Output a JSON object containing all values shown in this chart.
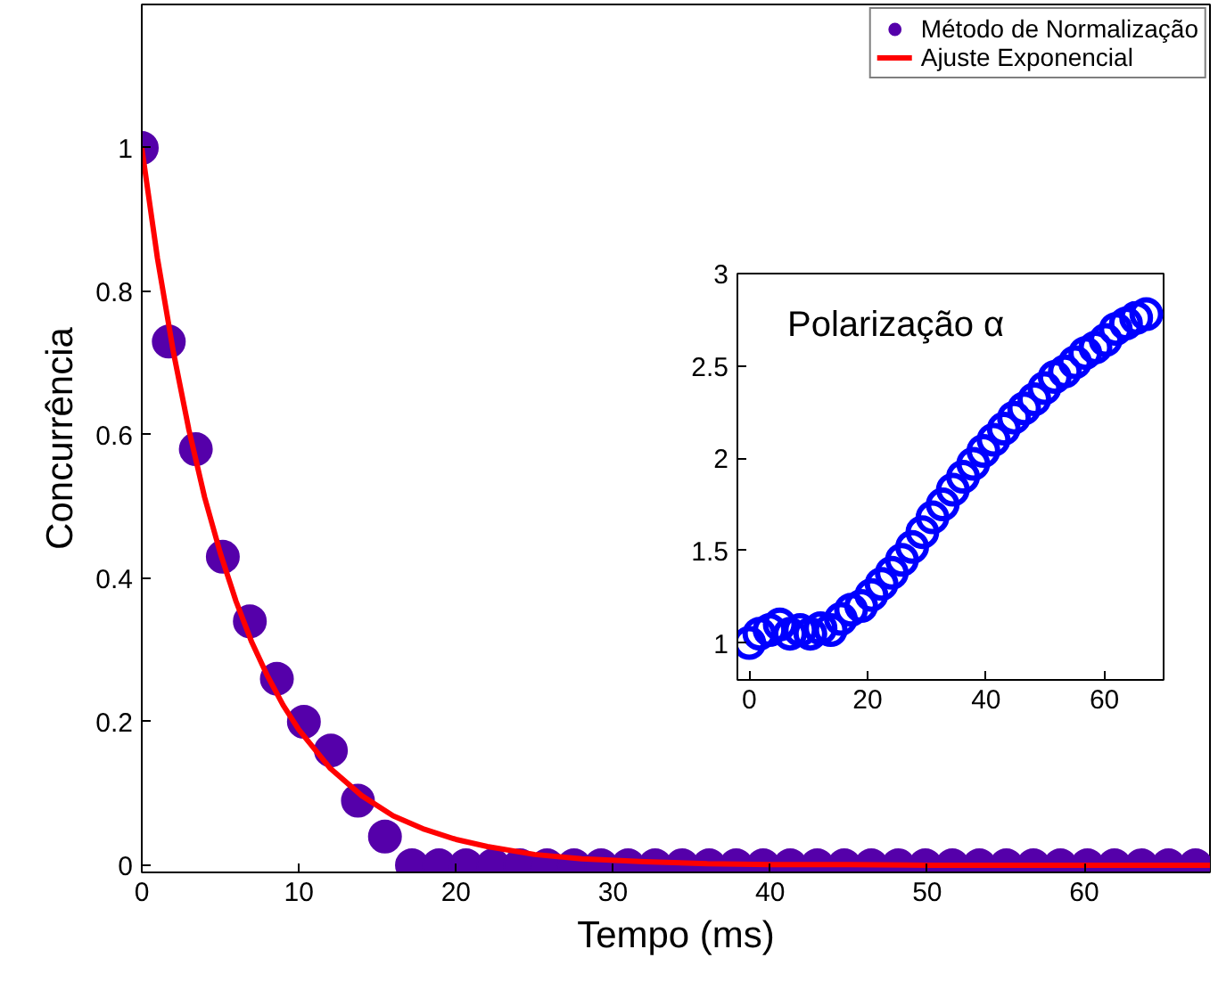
{
  "chart_data": [
    {
      "type": "scatter",
      "xlabel": "Tempo (ms)",
      "ylabel": "Concurrência",
      "xlim": [
        0,
        68
      ],
      "ylim": [
        -0.01,
        1.2
      ],
      "xticks": [
        0,
        10,
        20,
        30,
        40,
        50,
        60
      ],
      "yticks": [
        0,
        0.2,
        0.4,
        0.6,
        0.8,
        1
      ],
      "grid": false,
      "legend": "top right",
      "x": [
        0,
        1.72,
        3.44,
        5.16,
        6.88,
        8.6,
        10.32,
        12.04,
        13.76,
        15.48,
        17.2,
        18.92,
        20.64,
        22.36,
        24.08,
        25.8,
        27.52,
        29.24,
        30.96,
        32.68,
        34.4,
        36.12,
        37.84,
        39.56,
        41.28,
        43,
        44.72,
        46.44,
        48.16,
        49.88,
        51.6,
        53.32,
        55.04,
        56.76,
        58.48,
        60.2,
        61.92,
        63.64,
        65.36,
        67.08
      ],
      "series": [
        {
          "name": "Método de Normalização",
          "type": "scatter",
          "color": "#5500aa",
          "marker": "circle",
          "values": [
            1,
            0.73,
            0.58,
            0.43,
            0.34,
            0.26,
            0.2,
            0.16,
            0.09,
            0.04,
            0,
            0,
            0,
            0,
            0,
            0,
            0,
            0,
            0,
            0,
            0,
            0,
            0,
            0,
            0,
            0,
            0,
            0,
            0,
            0,
            0,
            0,
            0,
            0,
            0,
            0,
            0,
            0,
            0,
            0
          ]
        },
        {
          "name": "Ajuste Exponencial",
          "type": "line",
          "color": "#ff0000",
          "marker": "none",
          "line_style": "solid",
          "x": [
            0,
            1,
            2,
            3,
            4,
            5,
            6,
            7,
            8,
            9,
            10,
            12,
            14,
            16,
            18,
            20,
            22,
            25,
            28,
            32,
            36,
            40,
            45,
            50,
            55,
            60,
            68
          ],
          "values": [
            1,
            0.846,
            0.717,
            0.607,
            0.513,
            0.435,
            0.368,
            0.311,
            0.264,
            0.223,
            0.189,
            0.135,
            0.097,
            0.069,
            0.05,
            0.036,
            0.026,
            0.015,
            0.009,
            0.005,
            0.002,
            0.001,
            0.001,
            0,
            0,
            0,
            0
          ]
        }
      ]
    },
    {
      "type": "scatter",
      "title": "Polarização α",
      "xlim": [
        -2,
        70
      ],
      "ylim": [
        0.8,
        3
      ],
      "xticks": [
        0,
        20,
        40,
        60
      ],
      "yticks": [
        1,
        1.5,
        2,
        2.5,
        3
      ],
      "grid": false,
      "marker": "circle",
      "x": [
        0,
        1.72,
        3.44,
        5.16,
        6.88,
        8.6,
        10.32,
        12.04,
        13.76,
        15.48,
        17.2,
        18.92,
        20.64,
        22.36,
        24.08,
        25.8,
        27.52,
        29.24,
        30.96,
        32.68,
        34.4,
        36.12,
        37.84,
        39.56,
        41.28,
        43,
        44.72,
        46.44,
        48.16,
        49.88,
        51.6,
        53.32,
        55.04,
        56.76,
        58.48,
        60.2,
        61.92,
        63.64,
        65.36,
        67.08
      ],
      "series": [
        {
          "color": "#0000ff",
          "values": [
            1,
            1.05,
            1.07,
            1.1,
            1.05,
            1.07,
            1.05,
            1.08,
            1.07,
            1.13,
            1.18,
            1.2,
            1.26,
            1.32,
            1.38,
            1.45,
            1.52,
            1.6,
            1.68,
            1.75,
            1.83,
            1.9,
            1.97,
            2.04,
            2.1,
            2.16,
            2.22,
            2.27,
            2.32,
            2.38,
            2.44,
            2.47,
            2.52,
            2.57,
            2.6,
            2.64,
            2.7,
            2.73,
            2.76,
            2.78
          ]
        }
      ]
    }
  ]
}
